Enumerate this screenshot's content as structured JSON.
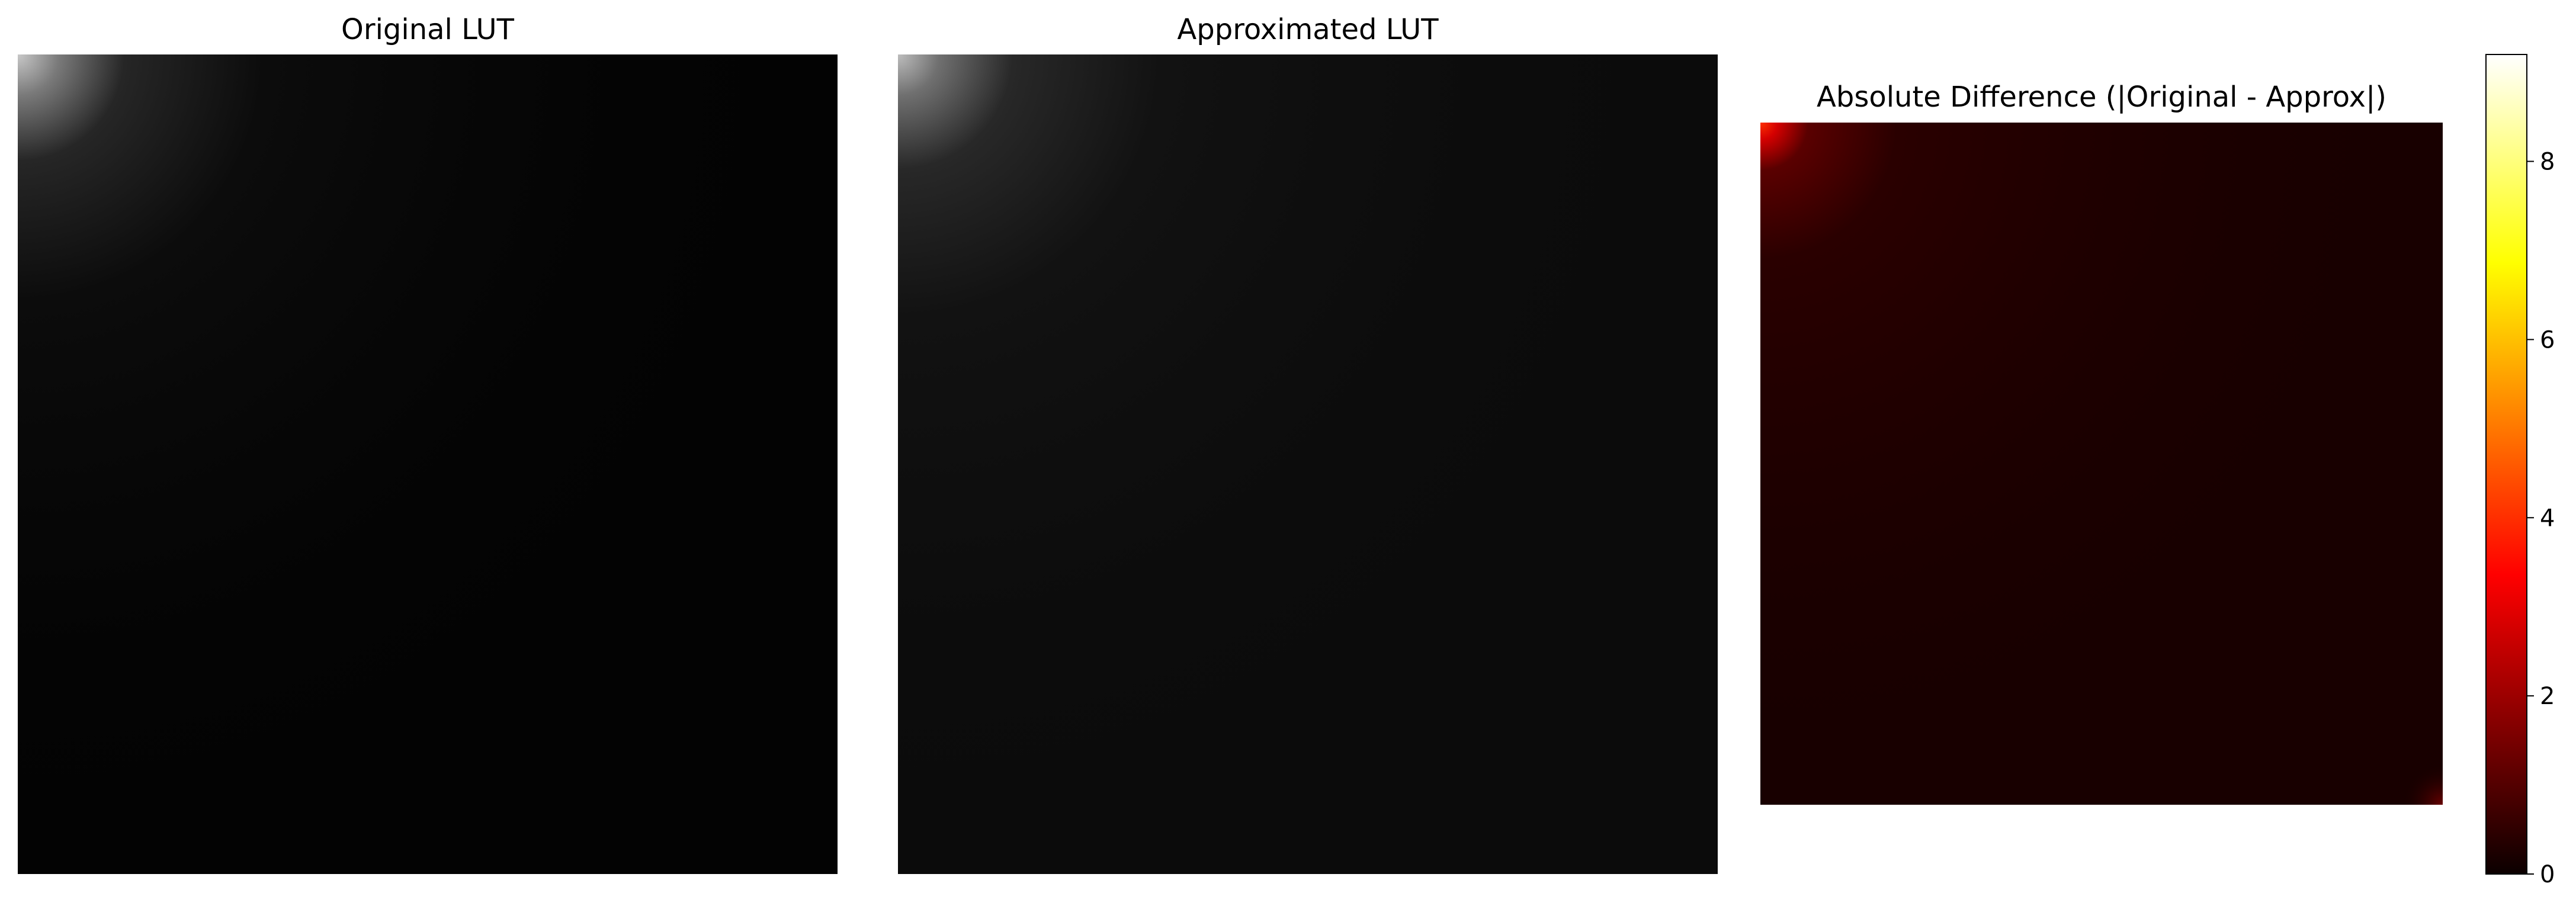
{
  "chart_data": [
    {
      "type": "heatmap",
      "title": "Original LUT",
      "colormap": "gray",
      "grid": false,
      "axes_visible": false,
      "value_range": [
        0,
        9.2
      ],
      "pattern": "bright values concentrated in the top-left corner, decaying rapidly to near zero across the rest of the grid"
    },
    {
      "type": "heatmap",
      "title": "Approximated LUT",
      "colormap": "gray",
      "grid": false,
      "axes_visible": false,
      "value_range": [
        0,
        9.2
      ],
      "pattern": "bright values concentrated in the top-left corner, decaying to near zero with faint background level"
    },
    {
      "type": "heatmap",
      "title": "Absolute Difference (|Original - Approx|)",
      "colormap": "hot",
      "grid": false,
      "axes_visible": false,
      "value_range": [
        0,
        9.2
      ],
      "colorbar": {
        "position": "right",
        "ticks": [
          "0",
          "2",
          "4",
          "6",
          "8"
        ],
        "tick_values": [
          0,
          2,
          4,
          6,
          8
        ]
      },
      "pattern": "red/orange values at the top-left corner, dark red near zero elsewhere, slight red tint at bottom-right corner"
    }
  ],
  "colors": {
    "background": "#ffffff",
    "gray_dark": "#050505",
    "gray_bright": "#bdbdbd",
    "hot_low": "#000000",
    "hot_mid_red": "#ff0000",
    "hot_orange": "#ff8c00",
    "hot_yellow": "#ffff00",
    "hot_high": "#ffffff"
  }
}
